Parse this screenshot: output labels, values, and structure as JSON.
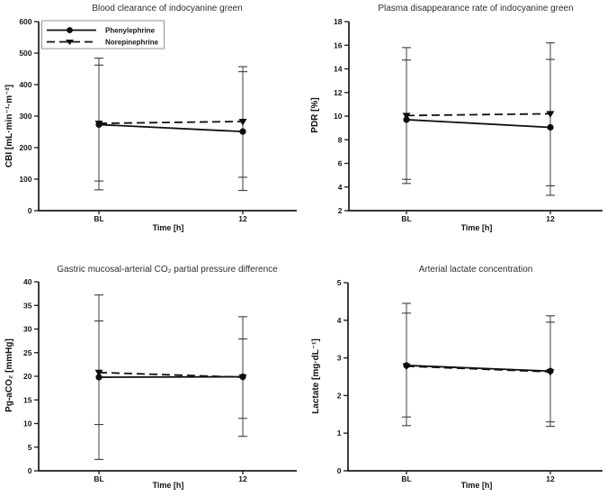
{
  "figure": {
    "background": "#ffffff",
    "series_color": "#111111",
    "error_bar_color": "#3c3c3c",
    "axis_color": "#1a1a1a"
  },
  "legend": {
    "entries": [
      "Phenylephrine",
      "Norepinephrine"
    ]
  },
  "chart_data": [
    {
      "type": "line",
      "title": "Blood clearance of indocyanine green",
      "ylabel": "CBI [mL·min⁻¹·m⁻²]",
      "xlabel": "Time [h]",
      "categories": [
        "BL",
        "12"
      ],
      "ylim": [
        0,
        600
      ],
      "yticks": [
        0,
        100,
        200,
        300,
        400,
        500,
        600
      ],
      "grid": false,
      "legend_position": "upper-left",
      "series": [
        {
          "name": "Phenylephrine",
          "line": "solid",
          "marker": "circle",
          "values": [
            273,
            251
          ],
          "err_low": [
            66,
            64
          ],
          "err_high": [
            484,
            441
          ]
        },
        {
          "name": "Norepinephrine",
          "line": "dashed",
          "marker": "triangle-down",
          "values": [
            277,
            283
          ],
          "err_low": [
            94,
            106
          ],
          "err_high": [
            462,
            457
          ]
        }
      ]
    },
    {
      "type": "line",
      "title": "Plasma disappearance rate of indocyanine green",
      "ylabel": "PDR [%]",
      "xlabel": "Time [h]",
      "categories": [
        "BL",
        "12"
      ],
      "ylim": [
        2,
        18
      ],
      "yticks": [
        2,
        4,
        6,
        8,
        10,
        12,
        14,
        16,
        18
      ],
      "grid": false,
      "series": [
        {
          "name": "Phenylephrine",
          "line": "solid",
          "marker": "circle",
          "values": [
            9.7,
            9.05
          ],
          "err_low": [
            4.65,
            3.3
          ],
          "err_high": [
            14.75,
            14.8
          ]
        },
        {
          "name": "Norepinephrine",
          "line": "dashed",
          "marker": "triangle-down",
          "values": [
            10.05,
            10.2
          ],
          "err_low": [
            4.3,
            4.1
          ],
          "err_high": [
            15.8,
            16.2
          ]
        }
      ]
    },
    {
      "type": "line",
      "title": "Gastric mucosal-arterial CO₂ partial pressure difference",
      "ylabel": "Pg-aCO₂ [mmHg]",
      "xlabel": "Time [h]",
      "categories": [
        "BL",
        "12"
      ],
      "ylim": [
        0,
        40
      ],
      "yticks": [
        0,
        5,
        10,
        15,
        20,
        25,
        30,
        35,
        40
      ],
      "grid": false,
      "series": [
        {
          "name": "Phenylephrine",
          "line": "solid",
          "marker": "circle",
          "values": [
            19.8,
            19.9
          ],
          "err_low": [
            9.8,
            11.1
          ],
          "err_high": [
            31.7,
            27.9
          ]
        },
        {
          "name": "Norepinephrine",
          "line": "dashed",
          "marker": "triangle-down",
          "values": [
            20.8,
            19.8
          ],
          "err_low": [
            2.4,
            7.3
          ],
          "err_high": [
            37.2,
            32.6
          ]
        }
      ]
    },
    {
      "type": "line",
      "title": "Arterial lactate concentration",
      "ylabel": "Lactate [mg·dL⁻¹]",
      "xlabel": "Time [h]",
      "categories": [
        "BL",
        "12"
      ],
      "ylim": [
        0,
        5
      ],
      "yticks": [
        0,
        1,
        2,
        3,
        4,
        5
      ],
      "grid": false,
      "series": [
        {
          "name": "Phenylephrine",
          "line": "solid",
          "marker": "circle",
          "values": [
            2.8,
            2.65
          ],
          "err_low": [
            1.2,
            1.18
          ],
          "err_high": [
            4.45,
            4.12
          ]
        },
        {
          "name": "Norepinephrine",
          "line": "dashed",
          "marker": "triangle-down",
          "values": [
            2.78,
            2.63
          ],
          "err_low": [
            1.43,
            1.3
          ],
          "err_high": [
            4.19,
            3.95
          ]
        }
      ]
    }
  ]
}
